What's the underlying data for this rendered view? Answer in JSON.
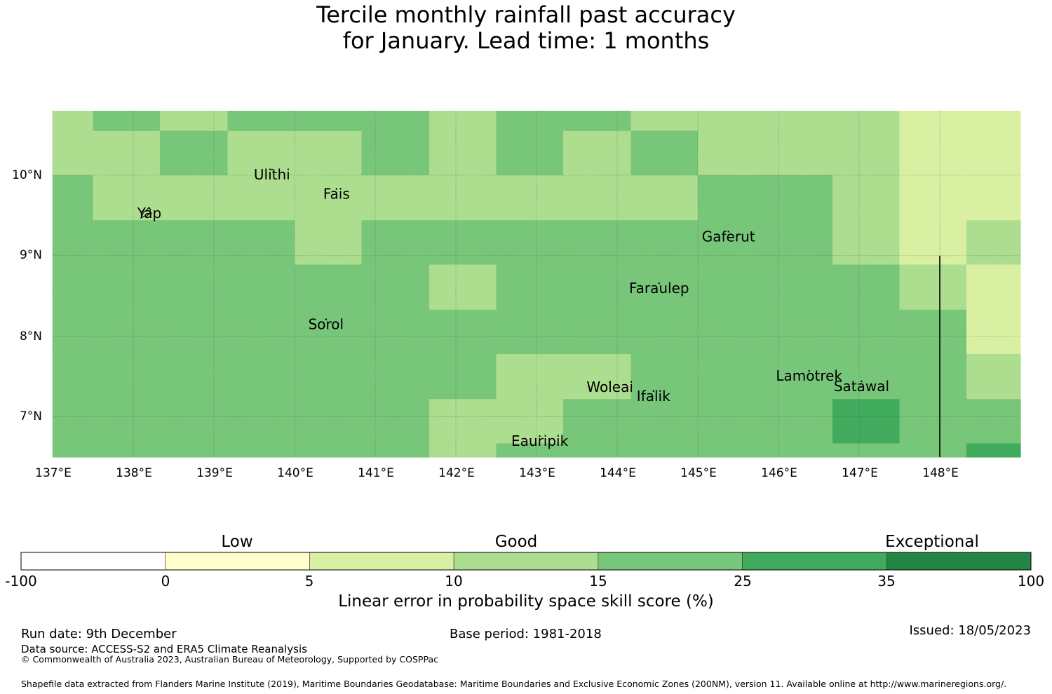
{
  "title": {
    "line1": "Tercile monthly rainfall past accuracy",
    "line2": "for January. Lead time: 1 months"
  },
  "map": {
    "extent": {
      "lon_min": 137.0,
      "lon_max": 149.0,
      "lat_min": 6.5,
      "lat_max": 10.8
    },
    "cell_lon_edges": [
      137.0,
      137.5,
      138.33,
      139.17,
      140.0,
      140.83,
      141.67,
      142.5,
      143.33,
      144.17,
      145.0,
      145.83,
      146.67,
      147.5,
      148.33,
      149.0
    ],
    "cell_lat_edges": [
      10.8,
      10.55,
      10.0,
      9.44,
      8.89,
      8.33,
      7.78,
      7.22,
      6.67,
      6.5
    ],
    "grid_classes": [
      [
        3,
        4,
        3,
        4,
        4,
        4,
        3,
        4,
        4,
        3,
        3,
        3,
        3,
        2,
        2
      ],
      [
        3,
        3,
        4,
        3,
        3,
        4,
        3,
        4,
        3,
        4,
        3,
        3,
        3,
        2,
        2
      ],
      [
        4,
        3,
        3,
        3,
        3,
        3,
        3,
        3,
        3,
        3,
        4,
        4,
        3,
        2,
        2
      ],
      [
        4,
        4,
        4,
        4,
        3,
        4,
        4,
        4,
        4,
        4,
        4,
        4,
        3,
        2,
        3
      ],
      [
        4,
        4,
        4,
        4,
        4,
        4,
        3,
        4,
        4,
        4,
        4,
        4,
        4,
        3,
        2
      ],
      [
        4,
        4,
        4,
        4,
        4,
        4,
        4,
        4,
        4,
        4,
        4,
        4,
        4,
        4,
        2
      ],
      [
        4,
        4,
        4,
        4,
        4,
        4,
        4,
        3,
        3,
        4,
        4,
        4,
        4,
        4,
        3
      ],
      [
        4,
        4,
        4,
        4,
        4,
        4,
        3,
        3,
        4,
        4,
        4,
        4,
        5,
        4,
        4
      ],
      [
        4,
        4,
        4,
        4,
        4,
        4,
        3,
        4,
        4,
        4,
        4,
        4,
        4,
        4,
        5
      ]
    ],
    "lat_labels": [
      {
        "value": 10,
        "label": "10°N"
      },
      {
        "value": 9,
        "label": "9°N"
      },
      {
        "value": 8,
        "label": "8°N"
      },
      {
        "value": 7,
        "label": "7°N"
      }
    ],
    "lon_labels": [
      {
        "value": 137,
        "label": "137°E"
      },
      {
        "value": 138,
        "label": "138°E"
      },
      {
        "value": 139,
        "label": "139°E"
      },
      {
        "value": 140,
        "label": "140°E"
      },
      {
        "value": 141,
        "label": "141°E"
      },
      {
        "value": 142,
        "label": "142°E"
      },
      {
        "value": 143,
        "label": "143°E"
      },
      {
        "value": 144,
        "label": "144°E"
      },
      {
        "value": 145,
        "label": "145°E"
      },
      {
        "value": 146,
        "label": "146°E"
      },
      {
        "value": 147,
        "label": "147°E"
      },
      {
        "value": 148,
        "label": "148°E"
      }
    ],
    "places": [
      {
        "name": "Yap",
        "lon": 138.2,
        "lat": 9.52
      },
      {
        "name": "Ulithi",
        "lon": 139.72,
        "lat": 10.0
      },
      {
        "name": "Fais",
        "lon": 140.52,
        "lat": 9.76
      },
      {
        "name": "Gaferut",
        "lon": 145.38,
        "lat": 9.23
      },
      {
        "name": "Faraulep",
        "lon": 144.52,
        "lat": 8.59
      },
      {
        "name": "Sorol",
        "lon": 140.39,
        "lat": 8.14
      },
      {
        "name": "Woleai",
        "lon": 143.91,
        "lat": 7.36
      },
      {
        "name": "Ifalik",
        "lon": 144.45,
        "lat": 7.25
      },
      {
        "name": "Lamotrek",
        "lon": 146.38,
        "lat": 7.5
      },
      {
        "name": "Satawal",
        "lon": 147.03,
        "lat": 7.37
      },
      {
        "name": "Eauripik",
        "lon": 143.04,
        "lat": 6.69
      }
    ],
    "boundary_line": {
      "lon": 148.0,
      "lat_top": 9.0,
      "lat_bottom": 6.5
    }
  },
  "colorbar": {
    "colors": [
      "#ffffff",
      "#ffffcc",
      "#d9f0a3",
      "#addd8e",
      "#78c679",
      "#41ab5d",
      "#238443"
    ],
    "ticks": [
      "-100",
      "0",
      "5",
      "10",
      "15",
      "25",
      "35",
      "100"
    ],
    "category_labels": [
      "Low",
      "Good",
      "Exceptional"
    ],
    "label": "Linear error in probability space skill score (%)"
  },
  "footer": {
    "run_date": "Run date: 9th December",
    "base_period": "Base period: 1981-2018",
    "issued": "Issued: 18/05/2023",
    "data_source": "Data source: ACCESS-S2 and ERA5 Climate Reanalysis",
    "copyright": "© Commonwealth of Australia 2023, Australian Bureau of Meteorology, Supported by COSPPac",
    "shapefile": "Shapefile data extracted from Flanders Marine Institute (2019), Maritime Boundaries Geodatabase: Maritime Boundaries and Exclusive Economic Zones (200NM), version 11. Available online at http://www.marineregions.org/."
  }
}
